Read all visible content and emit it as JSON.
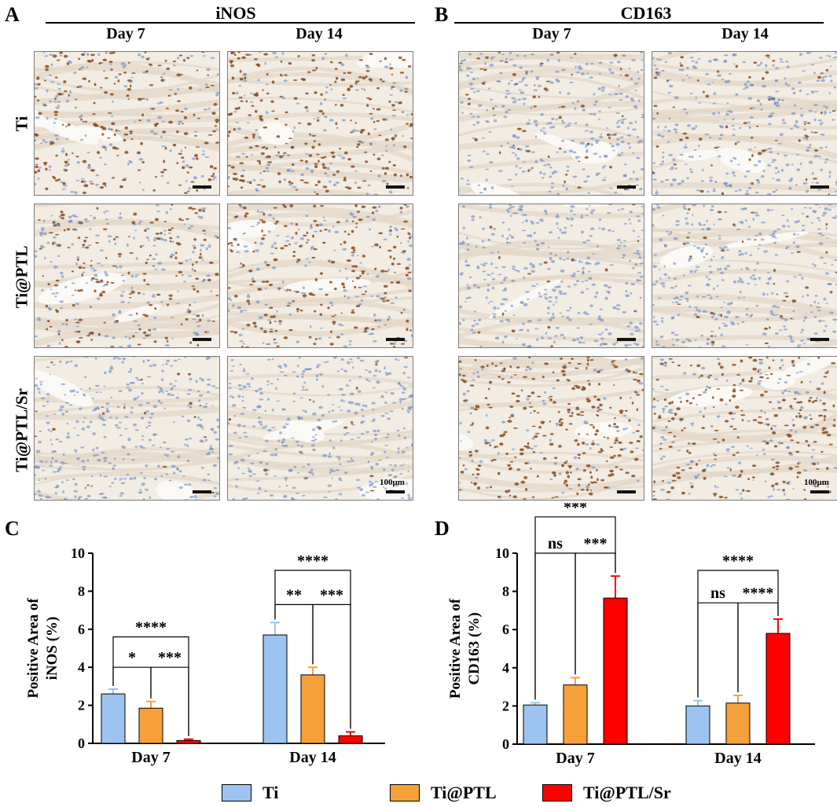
{
  "panels": {
    "A": {
      "letter": "A",
      "marker": "iNOS"
    },
    "B": {
      "letter": "B",
      "marker": "CD163"
    },
    "C": {
      "letter": "C"
    },
    "D": {
      "letter": "D"
    }
  },
  "days": [
    "Day 7",
    "Day 14"
  ],
  "rows": [
    "Ti",
    "Ti@PTL",
    "Ti@PTL/Sr"
  ],
  "scale_label": "100μm",
  "colors": {
    "Ti": "#9dc3f0",
    "Ti@PTL": "#f6a03c",
    "Ti@PTL/Sr": "#ff0000",
    "stain_brown": "#8a4a1c",
    "stain_blue": "#5a7fc2",
    "tissue_bg": "#f2ece3"
  },
  "legend": [
    {
      "label": "Ti",
      "color": "#9dc3f0"
    },
    {
      "label": "Ti@PTL",
      "color": "#f6a03c"
    },
    {
      "label": "Ti@PTL/Sr",
      "color": "#ff0000"
    }
  ],
  "stain_density": {
    "A": [
      [
        0.55,
        0.7
      ],
      [
        0.45,
        0.6
      ],
      [
        0.04,
        0.04
      ]
    ],
    "B": [
      [
        0.15,
        0.15
      ],
      [
        0.06,
        0.1
      ],
      [
        0.75,
        0.6
      ]
    ]
  },
  "chart_data": [
    {
      "type": "bar",
      "categories": [
        "Day 7",
        "Day 14"
      ],
      "series": [
        {
          "name": "Ti",
          "values": [
            2.6,
            5.7
          ],
          "errors": [
            0.25,
            0.65
          ]
        },
        {
          "name": "Ti@PTL",
          "values": [
            1.85,
            3.6
          ],
          "errors": [
            0.35,
            0.4
          ]
        },
        {
          "name": "Ti@PTL/Sr",
          "values": [
            0.15,
            0.4
          ],
          "errors": [
            0.07,
            0.2
          ]
        }
      ],
      "ylabel_line1": "Positive Area of",
      "ylabel_line2": "iNOS (%)",
      "ylim": [
        0,
        10
      ],
      "yticks": [
        "0",
        "2",
        "4",
        "6",
        "8",
        "10"
      ],
      "annotations": [
        {
          "category": 0,
          "from": 0,
          "to": 1,
          "text": "*",
          "level": 4.0
        },
        {
          "category": 0,
          "from": 1,
          "to": 2,
          "text": "***",
          "level": 4.0
        },
        {
          "category": 0,
          "from": 0,
          "to": 2,
          "text": "****",
          "level": 5.6
        },
        {
          "category": 1,
          "from": 0,
          "to": 1,
          "text": "**",
          "level": 7.3
        },
        {
          "category": 1,
          "from": 1,
          "to": 2,
          "text": "***",
          "level": 7.3
        },
        {
          "category": 1,
          "from": 0,
          "to": 2,
          "text": "****",
          "level": 9.1
        }
      ]
    },
    {
      "type": "bar",
      "categories": [
        "Day 7",
        "Day 14"
      ],
      "series": [
        {
          "name": "Ti",
          "values": [
            2.05,
            2.0
          ],
          "errors": [
            0.12,
            0.28
          ]
        },
        {
          "name": "Ti@PTL",
          "values": [
            3.1,
            2.15
          ],
          "errors": [
            0.38,
            0.4
          ]
        },
        {
          "name": "Ti@PTL/Sr",
          "values": [
            7.65,
            5.8
          ],
          "errors": [
            1.15,
            0.75
          ]
        }
      ],
      "ylabel_line1": "Positive Area of",
      "ylabel_line2": "CD163  (%)",
      "ylim": [
        0,
        10
      ],
      "yticks": [
        "0",
        "2",
        "4",
        "6",
        "8",
        "10"
      ],
      "annotations": [
        {
          "category": 0,
          "from": 0,
          "to": 1,
          "text": "ns",
          "level": 10.0
        },
        {
          "category": 0,
          "from": 1,
          "to": 2,
          "text": "***",
          "level": 10.0
        },
        {
          "category": 0,
          "from": 0,
          "to": 2,
          "text": "***",
          "level": 11.9
        },
        {
          "category": 1,
          "from": 0,
          "to": 1,
          "text": "ns",
          "level": 7.4
        },
        {
          "category": 1,
          "from": 1,
          "to": 2,
          "text": "****",
          "level": 7.4
        },
        {
          "category": 1,
          "from": 0,
          "to": 2,
          "text": "****",
          "level": 9.1
        }
      ]
    }
  ]
}
